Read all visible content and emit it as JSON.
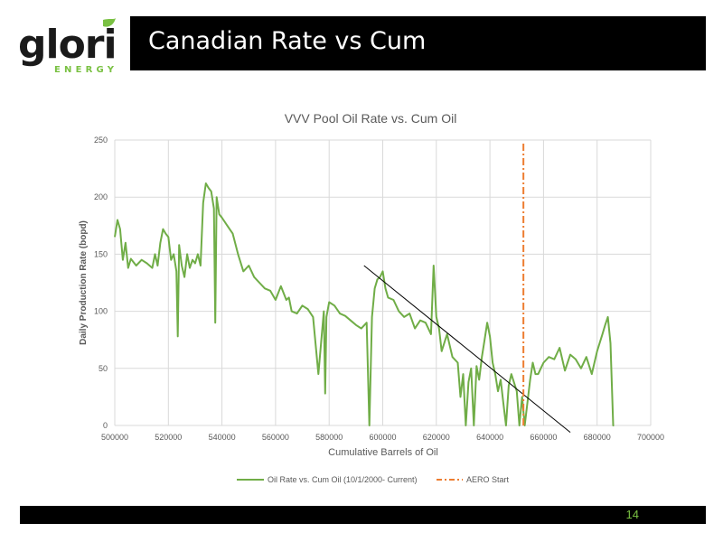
{
  "logo": {
    "word": "glori",
    "sub": "ENERGY"
  },
  "slide": {
    "title": "Canadian Rate vs Cum",
    "page_number": "14"
  },
  "colors": {
    "series": "#70ad47",
    "aero": "#ed7d31",
    "trend": "#000000",
    "grid": "#d9d9d9",
    "accent": "#7ac143"
  },
  "chart_data": {
    "type": "line",
    "title": "VVV Pool Oil Rate vs. Cum Oil",
    "xlabel": "Cumulative Barrels of Oil",
    "ylabel": "Daily Production Rate (bopd)",
    "xlim": [
      500000,
      700000
    ],
    "ylim": [
      0,
      250
    ],
    "xticks": [
      500000,
      520000,
      540000,
      560000,
      580000,
      600000,
      620000,
      640000,
      660000,
      680000,
      700000
    ],
    "yticks": [
      0,
      50,
      100,
      150,
      200,
      250
    ],
    "grid": true,
    "legend_position": "bottom",
    "series": [
      {
        "name": "Oil Rate vs. Cum Oil (10/1/2000- Current)",
        "x": [
          500000,
          501000,
          502000,
          503000,
          504000,
          505000,
          506000,
          508000,
          510000,
          512000,
          514000,
          515000,
          516000,
          517000,
          518000,
          519000,
          520000,
          521000,
          522000,
          523000,
          523500,
          524000,
          525000,
          526000,
          527000,
          528000,
          529000,
          530000,
          531000,
          532000,
          533000,
          534000,
          535000,
          536000,
          537000,
          537500,
          538000,
          539000,
          540000,
          542000,
          544000,
          546000,
          548000,
          550000,
          552000,
          554000,
          556000,
          558000,
          560000,
          562000,
          564000,
          565000,
          566000,
          568000,
          570000,
          572000,
          574000,
          576000,
          578000,
          578500,
          579000,
          580000,
          582000,
          584000,
          586000,
          588000,
          590000,
          592000,
          594000,
          595000,
          596000,
          597000,
          598000,
          599000,
          600000,
          601000,
          602000,
          604000,
          606000,
          608000,
          610000,
          612000,
          614000,
          616000,
          618000,
          619000,
          620000,
          621000,
          622000,
          624000,
          626000,
          628000,
          629000,
          630000,
          631000,
          632000,
          633000,
          634000,
          635000,
          636000,
          637000,
          638000,
          639000,
          640000,
          641000,
          642000,
          643000,
          644000,
          645000,
          646000,
          647000,
          648000,
          650000,
          651000,
          652000,
          653000,
          654000,
          655000,
          656000,
          657000,
          658000,
          659000,
          660000,
          662000,
          664000,
          666000,
          668000,
          670000,
          672000,
          674000,
          676000,
          678000,
          680000,
          682000,
          683000,
          684000,
          685000,
          686000,
          686300
        ],
        "y": [
          165,
          180,
          172,
          145,
          160,
          138,
          146,
          140,
          145,
          142,
          138,
          150,
          140,
          160,
          172,
          168,
          165,
          145,
          150,
          135,
          78,
          158,
          140,
          130,
          150,
          138,
          145,
          142,
          150,
          140,
          195,
          212,
          208,
          205,
          190,
          90,
          200,
          185,
          182,
          175,
          168,
          150,
          135,
          140,
          130,
          125,
          120,
          118,
          110,
          122,
          110,
          112,
          100,
          98,
          105,
          102,
          95,
          45,
          100,
          28,
          95,
          108,
          105,
          98,
          96,
          92,
          88,
          85,
          90,
          0,
          95,
          120,
          128,
          130,
          135,
          120,
          112,
          110,
          100,
          95,
          98,
          85,
          92,
          90,
          80,
          140,
          95,
          85,
          65,
          80,
          60,
          55,
          25,
          45,
          0,
          38,
          50,
          0,
          52,
          40,
          60,
          75,
          90,
          78,
          55,
          45,
          30,
          40,
          20,
          0,
          35,
          45,
          30,
          0,
          25,
          0,
          20,
          40,
          55,
          45,
          45,
          50,
          55,
          60,
          58,
          68,
          48,
          62,
          58,
          50,
          60,
          45,
          65,
          80,
          88,
          95,
          72,
          0,
          0
        ]
      },
      {
        "name": "AERO Start",
        "x": [
          652500,
          652500
        ],
        "y": [
          0,
          248
        ]
      },
      {
        "name": "",
        "x": [
          593000,
          670000
        ],
        "y": [
          140,
          -6
        ]
      }
    ]
  }
}
